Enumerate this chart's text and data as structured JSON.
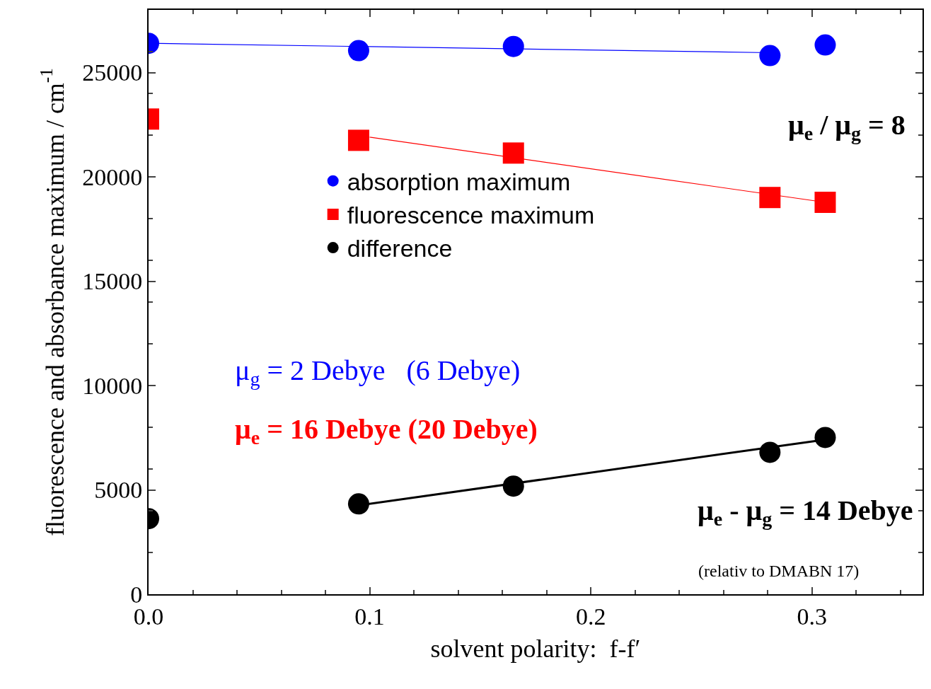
{
  "chart_data": {
    "type": "scatter",
    "xlabel": "solvent polarity:  f-f′",
    "ylabel": "fluorescence and absorbance maximum / cm$^{-1}$",
    "xlim": [
      0,
      0.35
    ],
    "xticks": [
      {
        "value": 0,
        "label": "0.0"
      },
      0.1,
      0.2,
      0.3
    ],
    "ylim": [
      0,
      28000
    ],
    "yticks": [
      0,
      5000,
      10000,
      15000,
      20000,
      25000
    ],
    "legend": "left",
    "series": [
      {
        "name": "absorption maximum",
        "color": "#0000ff",
        "marker": "circle",
        "x": [
          0,
          0.095,
          0.165,
          0.281,
          0.306
        ],
        "values": [
          26400,
          26050,
          26250,
          25810,
          26320
        ]
      },
      {
        "name": "fluorescence maximum",
        "color": "#ff0000",
        "marker": "square",
        "x": [
          0,
          0.095,
          0.165,
          0.281,
          0.306
        ],
        "values": [
          22770,
          21750,
          21140,
          19010,
          18780
        ]
      },
      {
        "name": "difference",
        "color": "#000000",
        "marker": "circle",
        "x": [
          0,
          0.095,
          0.165,
          0.281,
          0.306
        ],
        "values": [
          3620,
          4330,
          5180,
          6800,
          7510
        ]
      },
      {
        "type": "line",
        "color": "#0000ff",
        "x": [
          0,
          0.281
        ],
        "values": [
          26400,
          25950
        ]
      },
      {
        "type": "line",
        "color": "#ff0000",
        "x": [
          0.1,
          0.306
        ],
        "values": [
          21900,
          18780
        ]
      },
      {
        "type": "line",
        "color": "#000000",
        "x": [
          0.095,
          0.306
        ],
        "values": [
          4260,
          7410
        ]
      }
    ],
    "annotations": [
      "μ$_{e}$ / μ$_{g}$ = 8",
      "μ$_{g}$ = 2 Debye   (6 Debye)",
      "μ$_{e}$ = 16 Debye (20 Debye)",
      "μ$_{e}$ - μ$_{g}$ = 14 Debye",
      "(relativ to DMABN 17)"
    ]
  }
}
